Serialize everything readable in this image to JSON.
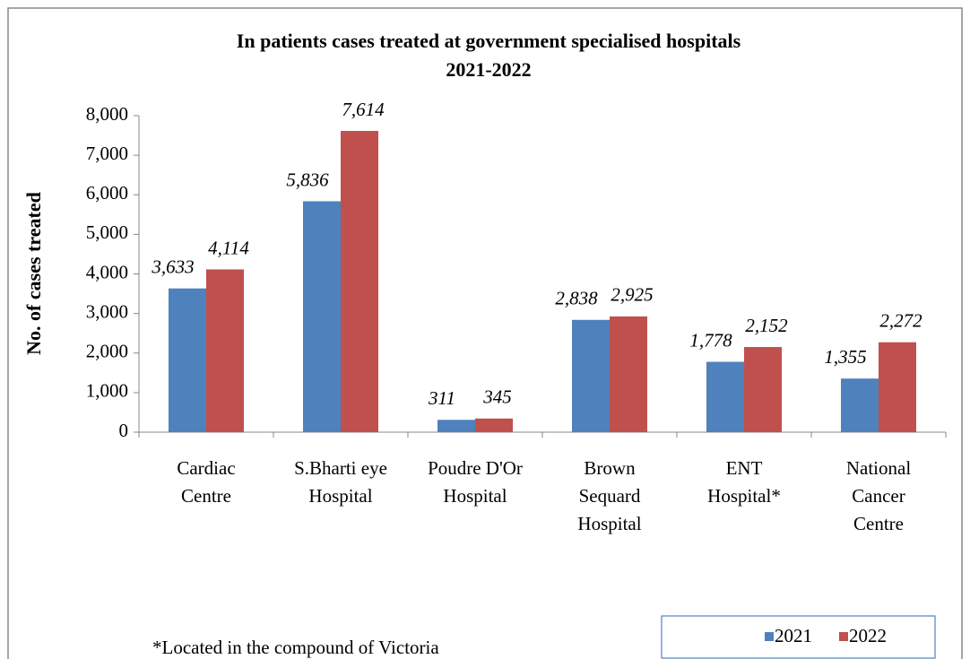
{
  "chart_data": {
    "type": "bar",
    "title": [
      "In patients cases treated at government specialised hospitals",
      "2021-2022"
    ],
    "y_label": "No. of cases treated",
    "annotation": "*Located in the compound of Victoria",
    "categories": [
      [
        "Cardiac",
        "Centre"
      ],
      [
        "S.Bharti eye",
        "Hospital"
      ],
      [
        "Poudre D'Or",
        "Hospital"
      ],
      [
        "Brown",
        "Sequard",
        "Hospital"
      ],
      [
        "ENT",
        "Hospital*"
      ],
      [
        "National",
        "Cancer",
        "Centre"
      ]
    ],
    "series": [
      {
        "name": "2021",
        "color": "#4f81bd",
        "values": [
          3633,
          5836,
          311,
          2838,
          1778,
          1355
        ],
        "value_labels": [
          "3,633",
          "5,836",
          "311",
          "2,838",
          "1,778",
          "1,355"
        ]
      },
      {
        "name": "2022",
        "color": "#c0504d",
        "values": [
          4114,
          7614,
          345,
          2925,
          2152,
          2272
        ],
        "value_labels": [
          "4,114",
          "7,614",
          "345",
          "2,925",
          "2,152",
          "2,272"
        ]
      }
    ],
    "ylim": [
      0,
      8000
    ],
    "yticks": [
      0,
      {
        "value": 1000,
        "label": "1,000"
      },
      {
        "value": 2000,
        "label": "2,000"
      },
      {
        "value": 3000,
        "label": "3,000"
      },
      {
        "value": 4000,
        "label": "4,000"
      },
      {
        "value": 5000,
        "label": "5,000"
      },
      {
        "value": 6000,
        "label": "6,000"
      },
      {
        "value": 7000,
        "label": "7,000"
      },
      {
        "value": 8000,
        "label": "8,000"
      }
    ],
    "legend": "bottom-right"
  }
}
